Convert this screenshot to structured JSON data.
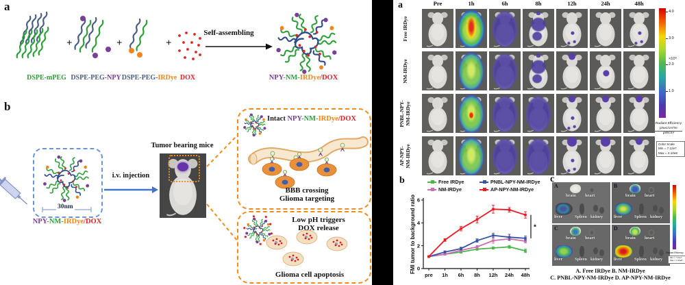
{
  "left": {
    "panel_a": {
      "label": "a",
      "plus": "+",
      "arrow_label": "Self-assembling",
      "component_labels": [
        [
          {
            "text": "DSPE-mPEG",
            "color": "#2e9e3a"
          }
        ],
        [
          {
            "text": "DSPE-PEG-",
            "color": "#4a5e82"
          },
          {
            "text": "NPY",
            "color": "#7a3f98"
          }
        ],
        [
          {
            "text": "DSPE-PEG-",
            "color": "#4a5e82"
          },
          {
            "text": "IRDye",
            "color": "#f0851c"
          }
        ],
        [
          {
            "text": "DOX",
            "color": "#e02424"
          }
        ]
      ],
      "product_label": [
        {
          "text": "NPY",
          "color": "#7a3f98"
        },
        {
          "text": "-NM-",
          "color": "#2e9e3a"
        },
        {
          "text": "IRDye",
          "color": "#f0851c"
        },
        {
          "text": "/DOX",
          "color": "#e02424"
        }
      ]
    },
    "panel_b": {
      "label": "b",
      "size_label": "30nm",
      "particle_label": [
        {
          "text": "NPY",
          "color": "#7a3f98"
        },
        {
          "text": "-NM-",
          "color": "#2e9e3a"
        },
        {
          "text": "IRDye",
          "color": "#f0851c"
        },
        {
          "text": "/DOX",
          "color": "#e02424"
        }
      ],
      "injection_label": "i.v. injection",
      "mouse_title": "Tumor bearing mice",
      "box_intact": {
        "title": [
          {
            "text": "Intact ",
            "color": "#1a1a1a"
          },
          {
            "text": "NPY",
            "color": "#7a3f98"
          },
          {
            "text": "-NM-",
            "color": "#2e9e3a"
          },
          {
            "text": "IRDye",
            "color": "#f0851c"
          },
          {
            "text": "/DOX",
            "color": "#e02424"
          }
        ],
        "caption_line1": "BBB crossing",
        "caption_line2": "Glioma targeting"
      },
      "box_release": {
        "title_line1": "Low pH triggers",
        "title_line2": "DOX release",
        "caption": "Glioma cell apoptosis"
      }
    }
  },
  "right": {
    "panel_a": {
      "label": "a",
      "timepoints": [
        "Pre",
        "1h",
        "6h",
        "8h",
        "12h",
        "24h",
        "48h"
      ],
      "groups": [
        {
          "name_lines": [
            "Free IRDye"
          ],
          "overlays": [
            "none",
            "hot-rainbow",
            "violet-full",
            "violet-patch",
            "specks",
            "none",
            "specks"
          ]
        },
        {
          "name_lines": [
            "NM-IRDye"
          ],
          "overlays": [
            "none",
            "green-full",
            "violet-full",
            "violet-patch",
            "head-dot",
            "body-dot",
            "none"
          ]
        },
        {
          "name_lines": [
            "PNBL-NPY-",
            "NM-IRDye"
          ],
          "overlays": [
            "none",
            "green-hot",
            "violet-full",
            "violet-full",
            "head-dot specks",
            "head-dot",
            "head-dot"
          ]
        },
        {
          "name_lines": [
            "AP-NPY-",
            "NM-IRDye"
          ],
          "overlays": [
            "none",
            "green-full",
            "violet-full",
            "violet-full",
            "head-dot-lg specks",
            "head-dot-lg",
            "head-dot"
          ]
        }
      ],
      "colorbar": {
        "ticks": [
          "4.0",
          "3.0",
          "2.0",
          "1.0"
        ],
        "exp_label": "×10⁸",
        "unit_title": "Radiant Efficiency",
        "unit_num": "p/sec/cm²/sr",
        "unit_den": "µW/cm²",
        "scale_title": "Color Scale",
        "scale_min": "Min = 7.12e7",
        "scale_max": "Max = 4.10e8"
      }
    },
    "panel_b": {
      "label": "b"
    },
    "panel_c": {
      "label": "c",
      "cells": [
        {
          "letter": "A",
          "liver_heat": "cool",
          "brain_heat": "none"
        },
        {
          "letter": "B",
          "liver_heat": "green",
          "brain_heat": "blue"
        },
        {
          "letter": "C",
          "liver_heat": "greenblue",
          "brain_heat": "cyan"
        },
        {
          "letter": "D",
          "liver_heat": "hot",
          "brain_heat": "green"
        }
      ],
      "organ_labels": {
        "brain": "brain",
        "heart": "heart",
        "liver": "liver",
        "spleen": "Spleen",
        "kidney": "kidney"
      },
      "caption_line1": "A. Free IRDye B. NM-IRDye",
      "caption_line2": "C. PNBL-NPY-NM-IRDye D. AP-NPY-NM-IRDye"
    }
  },
  "chart_data": {
    "type": "line",
    "title": "",
    "xlabel": "",
    "ylabel": "FMI tumor to background ratio",
    "categories": [
      "pre",
      "1h",
      "6h",
      "8h",
      "12h",
      "24h",
      "48h"
    ],
    "ylim": [
      0,
      6
    ],
    "yticks": [
      0,
      2,
      4,
      6
    ],
    "legend_position": "top",
    "grid": false,
    "series": [
      {
        "name": "Free IRDye",
        "color": "#4cb748",
        "values": [
          1.05,
          1.25,
          1.45,
          1.7,
          1.8,
          1.9,
          1.55
        ],
        "errors": [
          0.05,
          0.08,
          0.1,
          0.1,
          0.1,
          0.12,
          0.15
        ]
      },
      {
        "name": "NM-IRDye",
        "color": "#cf6db0",
        "values": [
          1.05,
          1.25,
          1.6,
          1.9,
          2.45,
          2.6,
          2.4
        ],
        "errors": [
          0.05,
          0.08,
          0.1,
          0.12,
          0.22,
          0.15,
          0.15
        ]
      },
      {
        "name": "PNBL-NPY-NM-IRDye",
        "color": "#3953a4",
        "values": [
          1.05,
          1.45,
          1.75,
          2.45,
          2.9,
          2.75,
          2.65
        ],
        "errors": [
          0.05,
          0.1,
          0.12,
          0.15,
          0.2,
          0.25,
          0.2
        ]
      },
      {
        "name": "AP-NPY-NM-IRDye",
        "color": "#ed1c24",
        "values": [
          1.05,
          2.5,
          3.5,
          4.3,
          5.2,
          5.15,
          4.7
        ],
        "errors": [
          0.08,
          0.12,
          0.2,
          0.3,
          0.35,
          0.2,
          0.28
        ]
      }
    ],
    "annotation": {
      "symbol": "*",
      "between": [
        "AP-NPY-NM-IRDye",
        "PNBL-NPY-NM-IRDye"
      ],
      "at_category": "48h"
    }
  }
}
